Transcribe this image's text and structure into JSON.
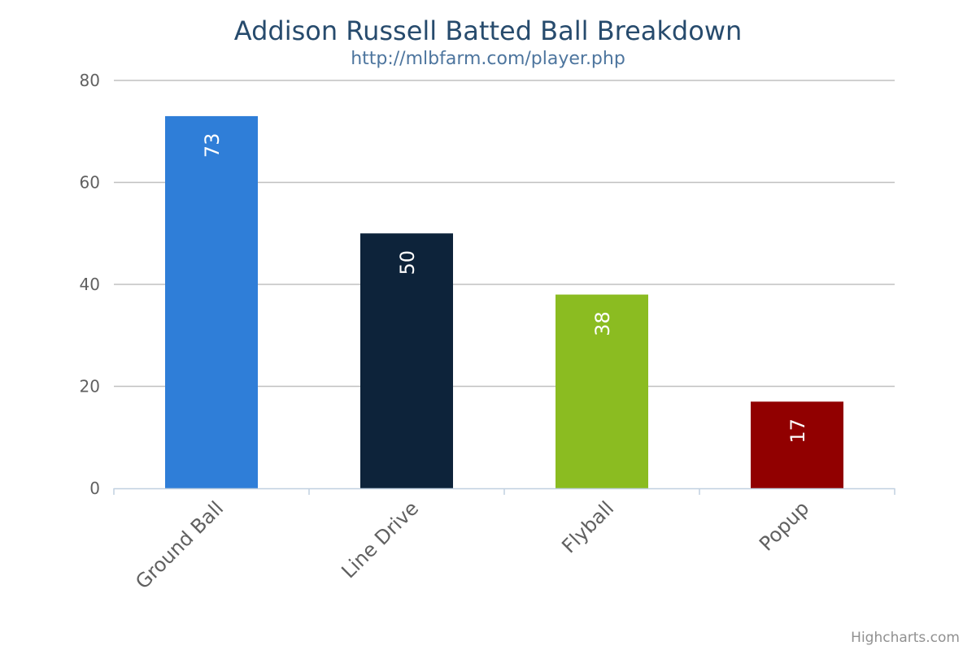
{
  "chart_data": {
    "type": "bar",
    "title": "Addison Russell Batted Ball Breakdown",
    "subtitle": "http://mlbfarm.com/player.php",
    "categories": [
      "Ground Ball",
      "Line Drive",
      "Flyball",
      "Popup"
    ],
    "values": [
      73,
      50,
      38,
      17
    ],
    "colors": [
      "#2f7ed8",
      "#0d233a",
      "#8bbc21",
      "#910000"
    ],
    "data_labels": [
      "73",
      "50",
      "38",
      "17"
    ],
    "y_ticks": [
      "0",
      "20",
      "40",
      "60",
      "80"
    ],
    "ylim": [
      0,
      80
    ],
    "grid": true,
    "xlabel": "",
    "ylabel": ""
  },
  "credits": "Highcharts.com"
}
